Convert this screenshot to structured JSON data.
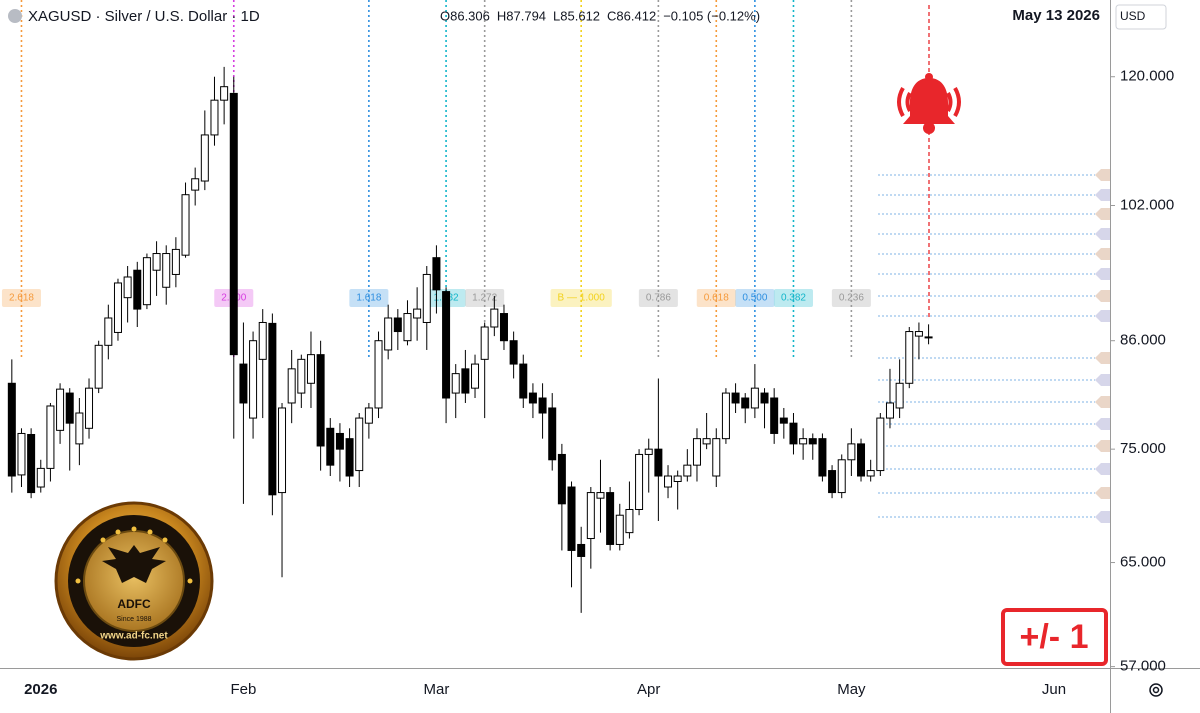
{
  "chart_data": {
    "type": "candlestick",
    "title": "XAGUSD · Silver / U.S. Dollar · 1D",
    "ohlc_legend": [
      "O86.306",
      "H87.794",
      "L85.612",
      "C86.412",
      "−0.105 (−0.12%)"
    ],
    "date": "May 13 2026",
    "currency": "USD",
    "log_scale": true,
    "grid": false,
    "up_color": "#ffffff",
    "down_color": "#000000",
    "outline_color": "#000000",
    "categories": [
      null,
      null,
      null,
      "2026",
      null,
      null,
      null,
      null,
      null,
      null,
      null,
      null,
      null,
      null,
      null,
      null,
      null,
      null,
      null,
      null,
      null,
      null,
      null,
      null,
      "Feb",
      null,
      null,
      null,
      null,
      null,
      null,
      null,
      null,
      null,
      null,
      null,
      null,
      null,
      null,
      null,
      null,
      null,
      null,
      null,
      "Mar",
      null,
      null,
      null,
      null,
      null,
      null,
      null,
      null,
      null,
      null,
      null,
      null,
      null,
      null,
      null,
      null,
      null,
      null,
      null,
      null,
      null,
      "Apr",
      null,
      null,
      null,
      null,
      null,
      null,
      null,
      null,
      null,
      null,
      null,
      null,
      null,
      null,
      null,
      null,
      null,
      null,
      null,
      null,
      "May",
      null,
      null,
      null,
      null,
      null,
      null,
      null,
      null,
      null,
      null,
      null,
      null,
      null,
      null,
      null,
      null,
      null,
      null,
      null,
      null,
      "Jun",
      null,
      null,
      null,
      null,
      null
    ],
    "open": [
      81.5,
      72.6,
      76.4,
      71.5,
      73.2,
      76.8,
      80.5,
      75.5,
      77,
      81,
      85.5,
      86.9,
      90.8,
      94,
      90,
      94,
      92,
      93.5,
      95.8,
      104,
      105.2,
      111.5,
      116.5,
      117.5,
      83.5,
      78,
      84,
      87.9,
      71,
      79.5,
      80.5,
      81.5,
      84.5,
      77,
      76.5,
      76,
      73,
      77.5,
      79,
      85,
      88.5,
      86,
      88.5,
      88,
      95.5,
      91.5,
      80.5,
      83,
      81,
      84,
      87.5,
      89,
      86,
      83.5,
      80.5,
      80,
      79,
      74.5,
      71.5,
      66.5,
      67,
      70.5,
      71,
      66.5,
      67.5,
      69.5,
      74.5,
      75,
      71.5,
      72,
      72.5,
      73.5,
      75.5,
      72.5,
      76,
      80.5,
      80,
      79,
      80.5,
      80,
      78,
      77.5,
      75.5,
      76,
      76,
      73,
      71,
      74,
      75.5,
      72.5,
      73,
      78,
      79,
      81.5,
      86.5,
      86.306,
      null,
      null,
      null,
      null,
      null,
      null,
      null,
      null,
      null,
      null,
      null,
      null,
      null,
      null,
      null,
      null,
      null,
      null
    ],
    "high": [
      84,
      77,
      77,
      74,
      79.5,
      81.5,
      81,
      80,
      82,
      86,
      90,
      93,
      94.5,
      95,
      96,
      97.5,
      97,
      98,
      105,
      107,
      115,
      120,
      121.5,
      120,
      88,
      87,
      89.5,
      89,
      79.5,
      85,
      84.5,
      87,
      86,
      78,
      77.5,
      77,
      78.5,
      79.5,
      87,
      90,
      89.5,
      90.5,
      92,
      94.5,
      97,
      92,
      83.5,
      85,
      84.5,
      88,
      91,
      90,
      87,
      84.5,
      81.5,
      81.5,
      80.5,
      75.5,
      72,
      68,
      71.5,
      74,
      71.5,
      70,
      72,
      75,
      76,
      82,
      73.5,
      73,
      75,
      77,
      78.5,
      77,
      81,
      81.5,
      80.5,
      83.5,
      81,
      81,
      79,
      78.5,
      77,
      76.5,
      76.5,
      73.5,
      74.5,
      77,
      76,
      74,
      78.5,
      83,
      84,
      87.5,
      88,
      87.794,
      null,
      null,
      null,
      null,
      null,
      null,
      null,
      null,
      null,
      null,
      null,
      null,
      null,
      null,
      null,
      null,
      null,
      null
    ],
    "low": [
      71,
      71.5,
      70.5,
      71,
      72,
      75.5,
      73,
      73.5,
      76,
      80.5,
      84,
      86,
      88,
      87.5,
      89.5,
      91,
      90,
      92,
      95.5,
      102,
      104,
      110,
      113,
      76,
      70,
      76,
      78,
      69,
      63.8,
      77.5,
      79,
      79,
      73,
      72.5,
      72,
      71.5,
      71.5,
      76,
      78,
      84,
      85,
      85.5,
      86,
      85,
      89,
      77.5,
      78,
      79.5,
      80,
      78,
      86.5,
      85,
      82,
      79,
      78,
      76,
      73,
      66,
      63,
      61,
      64.5,
      67.5,
      66,
      66,
      67,
      69,
      71,
      68.5,
      70.5,
      69.5,
      72,
      72,
      75,
      71.5,
      75.5,
      78.5,
      77.5,
      78,
      77,
      75.5,
      76,
      74.5,
      74,
      74,
      72,
      70.5,
      70.5,
      72.5,
      72,
      72,
      72.5,
      77,
      78,
      81,
      84,
      85.612,
      null,
      null,
      null,
      null,
      null,
      null,
      null,
      null,
      null,
      null,
      null,
      null,
      null,
      null,
      null,
      null,
      null,
      null
    ],
    "close": [
      72.5,
      76.5,
      71,
      73.2,
      79.2,
      80.9,
      77.5,
      78.5,
      81,
      85.5,
      88.5,
      92.5,
      93.2,
      89.5,
      95.5,
      96,
      96,
      96.5,
      103.4,
      105.5,
      111.5,
      116.5,
      118.5,
      84.5,
      79.5,
      86,
      88,
      70.8,
      79,
      83,
      84,
      84.5,
      75.3,
      73.5,
      75,
      72.5,
      78,
      79,
      86,
      88.5,
      87,
      89,
      89.5,
      93.5,
      91.7,
      80,
      82.5,
      80.5,
      83.5,
      87.5,
      89.5,
      86,
      83.5,
      80,
      79.5,
      78.5,
      74,
      70,
      66,
      65.5,
      71,
      71,
      66.5,
      69,
      69.5,
      74.5,
      75,
      72.5,
      72.5,
      72.5,
      73.5,
      76,
      76,
      76,
      80.5,
      79.5,
      79,
      81,
      79.5,
      76.5,
      77.5,
      75.5,
      76,
      75.5,
      72.5,
      71,
      74,
      75.5,
      72.5,
      73,
      78,
      79.5,
      81.5,
      87,
      87,
      86.412,
      null,
      null,
      null,
      null,
      null,
      null,
      null,
      null,
      null,
      null,
      null,
      null,
      null,
      null,
      null,
      null,
      null,
      null
    ],
    "ylim": [
      56.9,
      132.2
    ],
    "yticks": [
      {
        "value": 57,
        "label": "57.000"
      },
      {
        "value": 65,
        "label": "65.000"
      },
      {
        "value": 75,
        "label": "75.000"
      },
      {
        "value": 86,
        "label": "86.000"
      },
      {
        "value": 102,
        "label": "102.000"
      },
      {
        "value": 120,
        "label": "120.000"
      }
    ],
    "fib_levels": [
      {
        "label": "2.618",
        "color": "#f59a3c"
      },
      {
        "label": "2.000",
        "color": "#d63ee0"
      },
      {
        "label": "1.618",
        "color": "#2f8fe0"
      },
      {
        "label": "1.382",
        "color": "#12b5c9"
      },
      {
        "label": "1.272",
        "color": "#9a9a9a"
      },
      {
        "label": "B — 1.000",
        "color": "#f2d21c"
      },
      {
        "label": "0.786",
        "color": "#9a9a9a"
      },
      {
        "label": "0.618",
        "color": "#f59a3c"
      },
      {
        "label": "0.500",
        "color": "#2f8fe0"
      },
      {
        "label": "0.382",
        "color": "#12b5c9"
      },
      {
        "label": "0.236",
        "color": "#9a9a9a"
      }
    ]
  },
  "logo": {
    "name": "ADFC",
    "since": "Since 1988",
    "url": "www.ad-fc.net"
  },
  "badge": "+/- 1"
}
